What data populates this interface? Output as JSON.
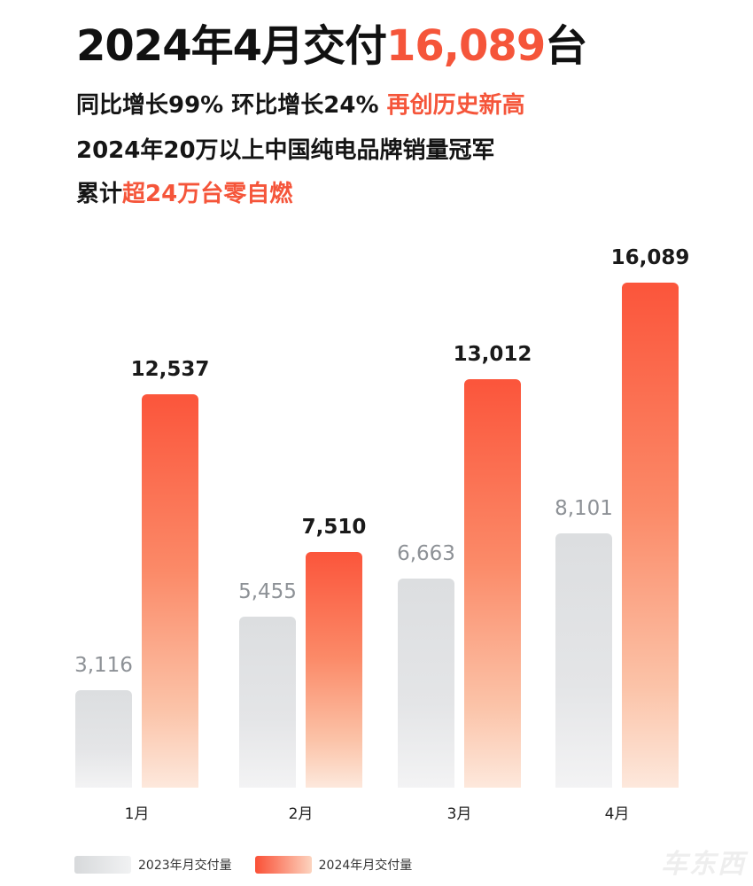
{
  "header": {
    "title_prefix": "2024年4月交付",
    "title_highlight": "16,089",
    "title_suffix": "台",
    "line1_prefix": "同比增长99% 环比增长24% ",
    "line1_highlight": "再创历史新高",
    "line2": "2024年20万以上中国纯电品牌销量冠军",
    "line3_prefix": "累计",
    "line3_highlight": "超24万台零自燃"
  },
  "colors": {
    "accent": "#f5553a",
    "series_2023": "#dcdee0",
    "series_2024": "#fb553b"
  },
  "legend": {
    "items": [
      {
        "label": "2023年月交付量",
        "color": "#dcdee0"
      },
      {
        "label": "2024年月交付量",
        "color": "#fb553b"
      }
    ]
  },
  "watermark": "车东西",
  "chart_data": {
    "type": "bar",
    "title": "2024年4月交付16,089台",
    "categories": [
      "1月",
      "2月",
      "3月",
      "4月"
    ],
    "series": [
      {
        "name": "2023年月交付量",
        "values": [
          3116,
          5455,
          6663,
          8101
        ],
        "labels": [
          "3,116",
          "5,455",
          "6,663",
          "8,101"
        ]
      },
      {
        "name": "2024年月交付量",
        "values": [
          12537,
          7510,
          13012,
          16089
        ],
        "labels": [
          "12,537",
          "7,510",
          "13,012",
          "16,089"
        ]
      }
    ],
    "xlabel": "",
    "ylabel": "",
    "grid": false,
    "legend_position": "bottom-left",
    "data_labels": true
  }
}
